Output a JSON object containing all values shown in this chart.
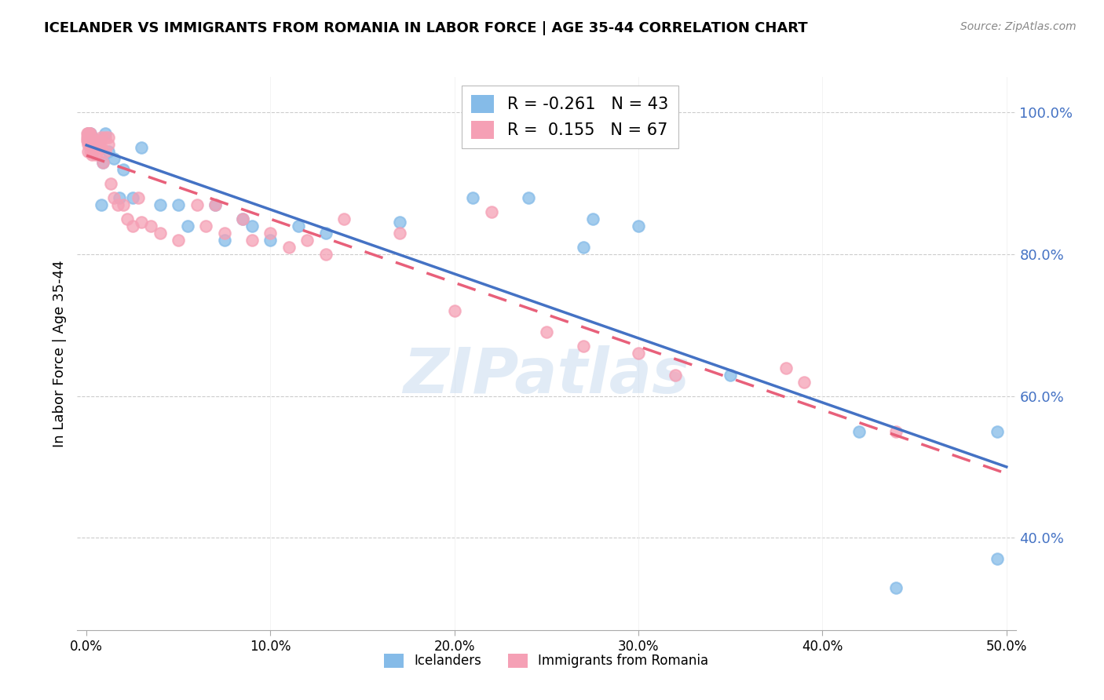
{
  "title": "ICELANDER VS IMMIGRANTS FROM ROMANIA IN LABOR FORCE | AGE 35-44 CORRELATION CHART",
  "source": "Source: ZipAtlas.com",
  "ylabel": "In Labor Force | Age 35-44",
  "icelander_color": "#85BBE8",
  "romania_color": "#F5A0B5",
  "icelander_R": -0.261,
  "icelander_N": 43,
  "romania_R": 0.155,
  "romania_N": 67,
  "legend_label_1": "Icelanders",
  "legend_label_2": "Immigrants from Romania",
  "watermark": "ZIPatlas",
  "icelander_line_color": "#4472C4",
  "romania_line_color": "#E8607A",
  "icelander_x": [
    0.0008,
    0.001,
    0.001,
    0.0012,
    0.0015,
    0.002,
    0.002,
    0.003,
    0.003,
    0.004,
    0.005,
    0.006,
    0.007,
    0.008,
    0.009,
    0.01,
    0.012,
    0.015,
    0.018,
    0.02,
    0.025,
    0.03,
    0.04,
    0.05,
    0.055,
    0.07,
    0.075,
    0.085,
    0.09,
    0.1,
    0.115,
    0.13,
    0.17,
    0.21,
    0.24,
    0.27,
    0.275,
    0.3,
    0.35,
    0.42,
    0.44,
    0.495,
    0.495
  ],
  "icelander_y": [
    0.97,
    0.965,
    0.96,
    0.97,
    0.97,
    0.97,
    0.965,
    0.965,
    0.955,
    0.96,
    0.955,
    0.955,
    0.96,
    0.87,
    0.93,
    0.97,
    0.945,
    0.935,
    0.88,
    0.92,
    0.88,
    0.95,
    0.87,
    0.87,
    0.84,
    0.87,
    0.82,
    0.85,
    0.84,
    0.82,
    0.84,
    0.83,
    0.845,
    0.88,
    0.88,
    0.81,
    0.85,
    0.84,
    0.63,
    0.55,
    0.33,
    0.37,
    0.55
  ],
  "romania_x": [
    0.0005,
    0.0005,
    0.0005,
    0.001,
    0.001,
    0.001,
    0.001,
    0.001,
    0.0012,
    0.0015,
    0.0015,
    0.002,
    0.002,
    0.002,
    0.002,
    0.003,
    0.003,
    0.003,
    0.003,
    0.004,
    0.004,
    0.005,
    0.005,
    0.005,
    0.006,
    0.006,
    0.007,
    0.007,
    0.008,
    0.008,
    0.009,
    0.01,
    0.01,
    0.012,
    0.012,
    0.013,
    0.015,
    0.017,
    0.02,
    0.022,
    0.025,
    0.028,
    0.03,
    0.035,
    0.04,
    0.05,
    0.06,
    0.065,
    0.07,
    0.075,
    0.085,
    0.09,
    0.1,
    0.11,
    0.12,
    0.13,
    0.14,
    0.17,
    0.2,
    0.22,
    0.25,
    0.27,
    0.3,
    0.32,
    0.38,
    0.39,
    0.44
  ],
  "romania_y": [
    0.97,
    0.965,
    0.96,
    0.97,
    0.965,
    0.96,
    0.955,
    0.945,
    0.97,
    0.97,
    0.96,
    0.97,
    0.965,
    0.955,
    0.945,
    0.96,
    0.955,
    0.95,
    0.94,
    0.96,
    0.955,
    0.955,
    0.95,
    0.94,
    0.96,
    0.945,
    0.96,
    0.95,
    0.965,
    0.95,
    0.93,
    0.965,
    0.945,
    0.965,
    0.955,
    0.9,
    0.88,
    0.87,
    0.87,
    0.85,
    0.84,
    0.88,
    0.845,
    0.84,
    0.83,
    0.82,
    0.87,
    0.84,
    0.87,
    0.83,
    0.85,
    0.82,
    0.83,
    0.81,
    0.82,
    0.8,
    0.85,
    0.83,
    0.72,
    0.86,
    0.69,
    0.67,
    0.66,
    0.63,
    0.64,
    0.62,
    0.55
  ],
  "xlim": [
    -0.005,
    0.505
  ],
  "ylim": [
    0.27,
    1.05
  ],
  "yticks": [
    0.4,
    0.6,
    0.8,
    1.0
  ],
  "ytick_labels": [
    "40.0%",
    "60.0%",
    "80.0%",
    "100.0%"
  ],
  "xticks": [
    0.0,
    0.1,
    0.2,
    0.3,
    0.4,
    0.5
  ],
  "xtick_labels": [
    "0.0%",
    "10.0%",
    "20.0%",
    "30.0%",
    "40.0%",
    "50.0%"
  ]
}
